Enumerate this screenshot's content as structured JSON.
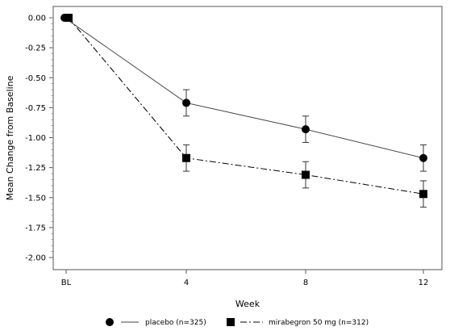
{
  "chart_data": {
    "type": "line",
    "xlabel": "Week",
    "ylabel": "Mean Change from Baseline",
    "x": [
      "BL",
      "4",
      "8",
      "12"
    ],
    "ylim": [
      -2.0,
      0.0
    ],
    "yticks": [
      "0.00",
      "-0.25",
      "-0.50",
      "-0.75",
      "-1.00",
      "-1.25",
      "-1.50",
      "-1.75",
      "-2.00"
    ],
    "grid": false,
    "legend_position": "bottom",
    "series": [
      {
        "name": "placebo (n=325)",
        "marker": "circle",
        "line": "solid",
        "values": [
          0.0,
          -0.71,
          -0.93,
          -1.17
        ],
        "error": [
          0.0,
          0.11,
          0.11,
          0.11
        ]
      },
      {
        "name": "mirabegron 50 mg (n=312)",
        "marker": "square",
        "line": "dash-dot",
        "values": [
          0.0,
          -1.17,
          -1.31,
          -1.47
        ],
        "error": [
          0.0,
          0.11,
          0.11,
          0.11
        ]
      }
    ]
  }
}
